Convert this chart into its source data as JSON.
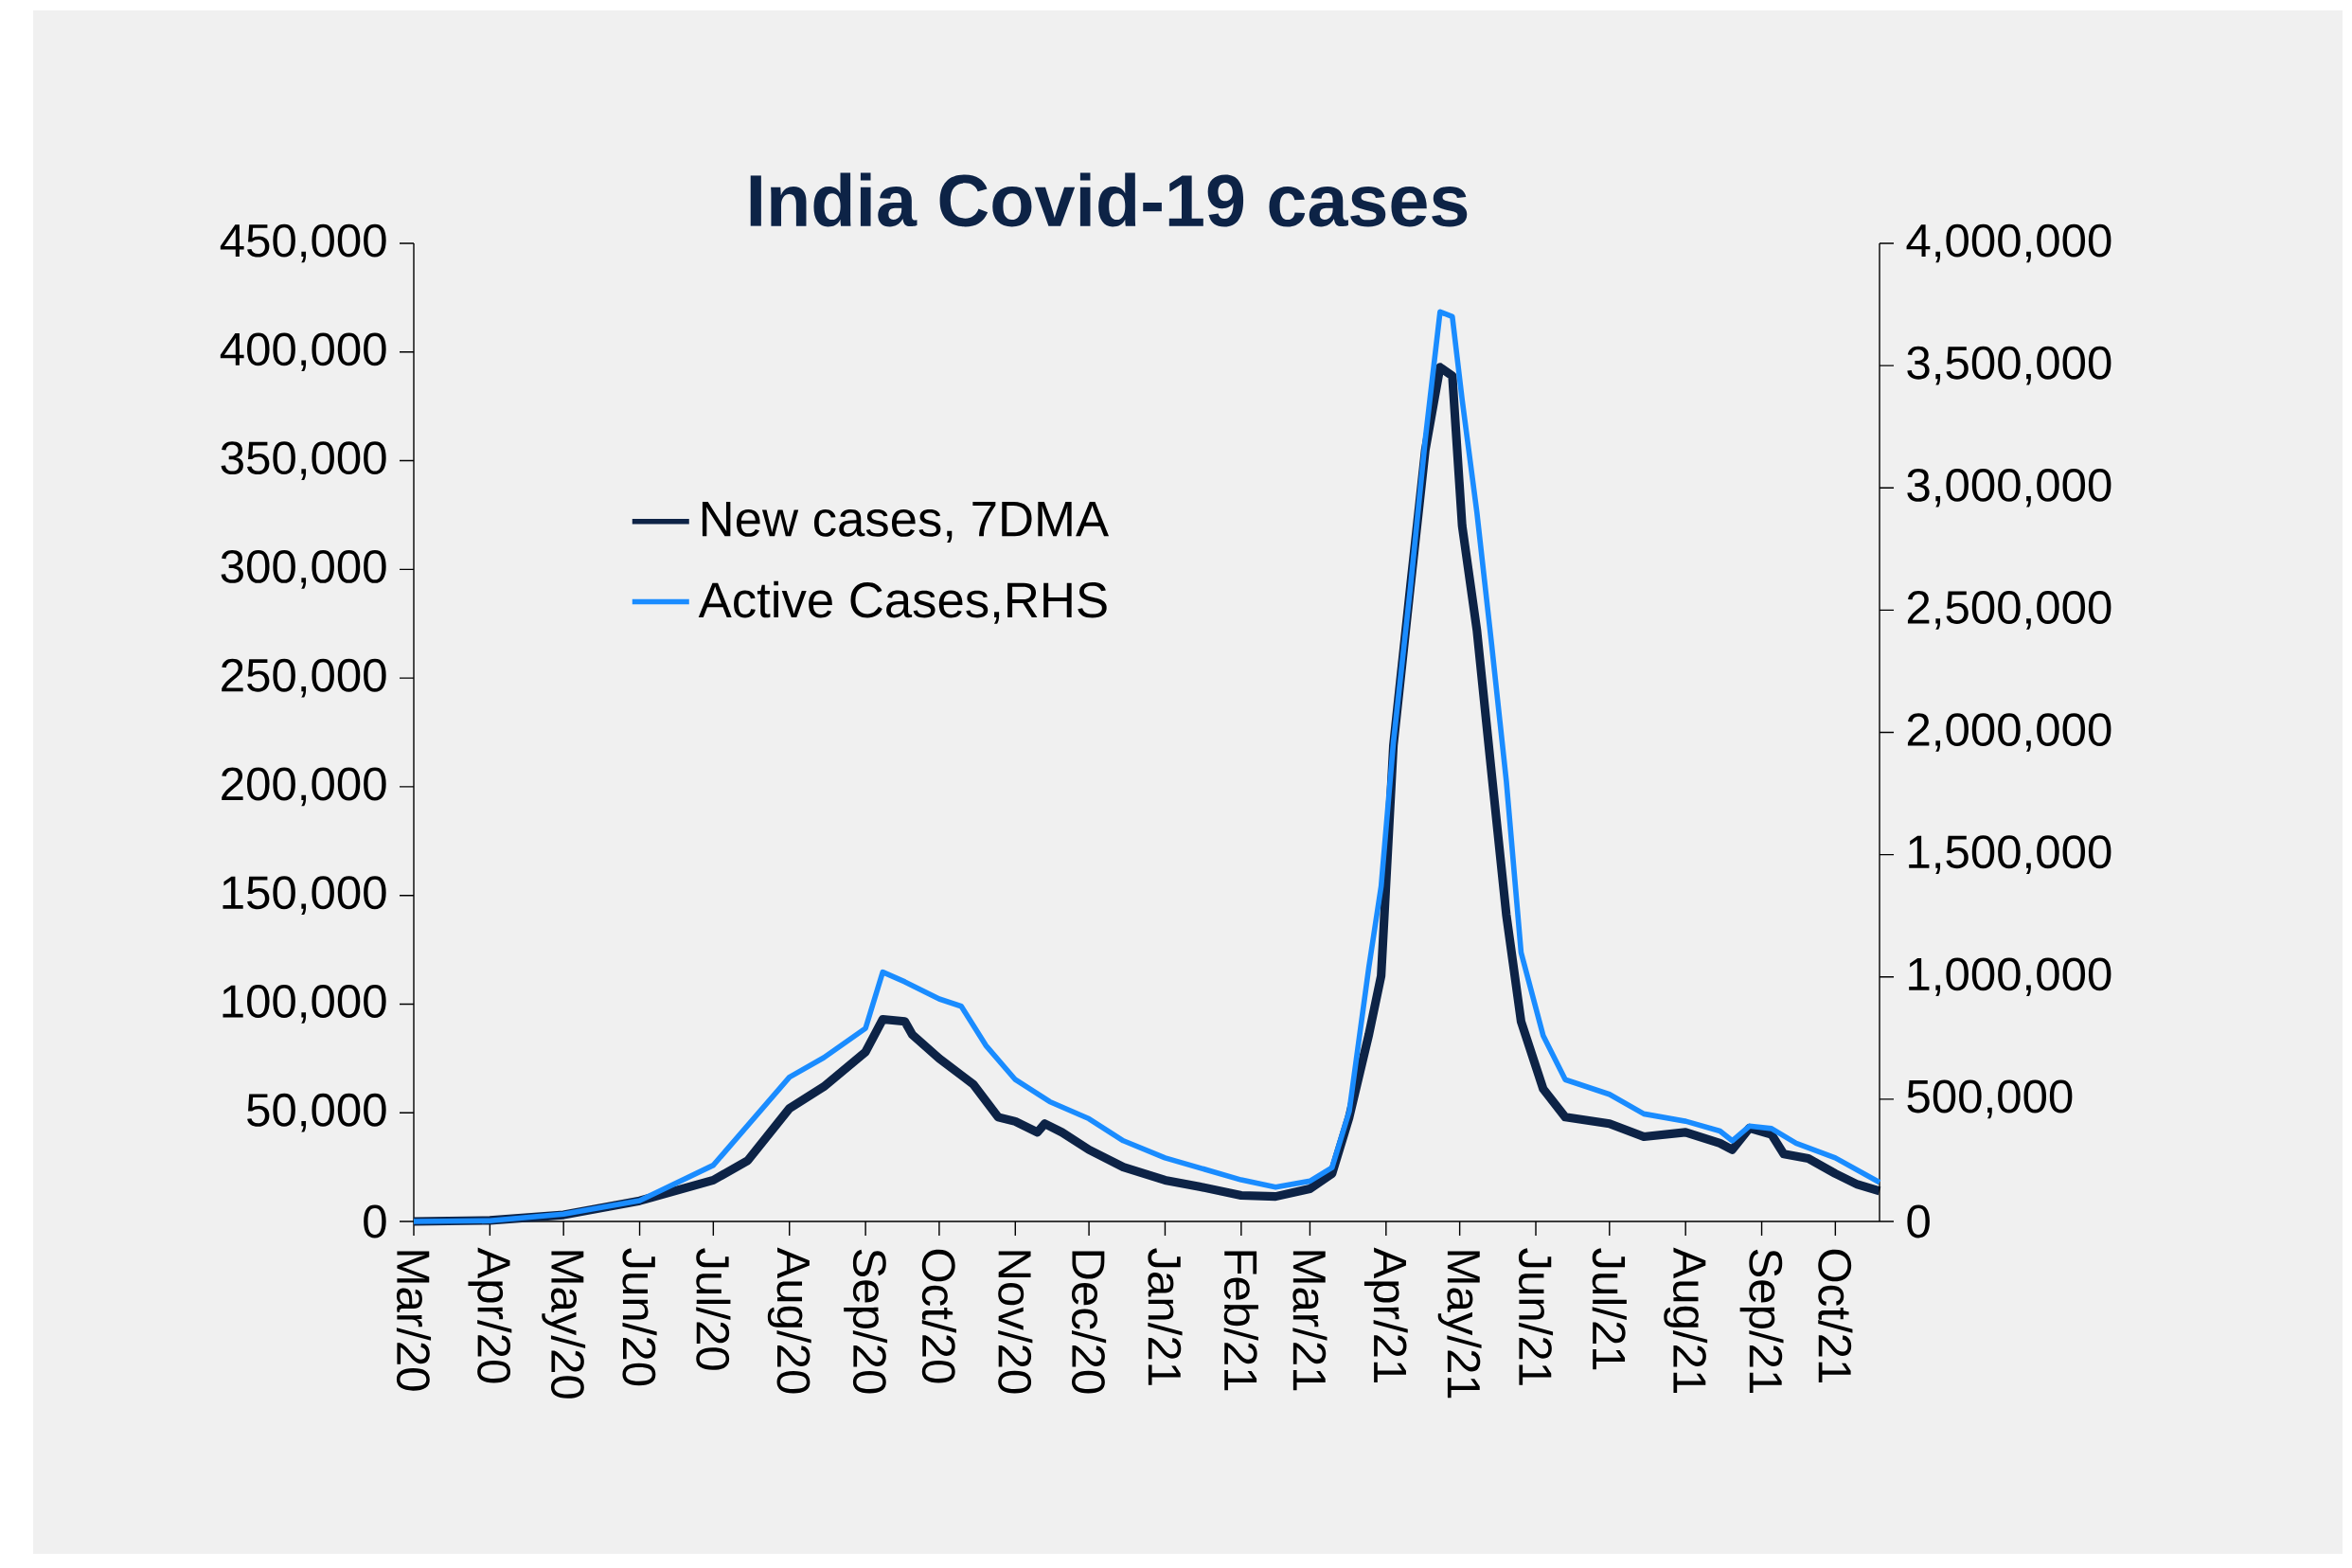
{
  "chart_data": {
    "type": "line",
    "title": "India Covid-19 cases",
    "xlim": [
      "2020-03-01",
      "2021-10-19"
    ],
    "xticks": [
      {
        "value": "2020-03-01",
        "label": "Mar/20"
      },
      {
        "value": "2020-04-01",
        "label": "Apr/20"
      },
      {
        "value": "2020-05-01",
        "label": "May/20"
      },
      {
        "value": "2020-06-01",
        "label": "Jun/20"
      },
      {
        "value": "2020-07-01",
        "label": "Jul/20"
      },
      {
        "value": "2020-08-01",
        "label": "Aug/20"
      },
      {
        "value": "2020-09-01",
        "label": "Sep/20"
      },
      {
        "value": "2020-10-01",
        "label": "Oct/20"
      },
      {
        "value": "2020-11-01",
        "label": "Nov/20"
      },
      {
        "value": "2020-12-01",
        "label": "Dec/20"
      },
      {
        "value": "2021-01-01",
        "label": "Jan/21"
      },
      {
        "value": "2021-02-01",
        "label": "Feb/21"
      },
      {
        "value": "2021-03-01",
        "label": "Mar/21"
      },
      {
        "value": "2021-04-01",
        "label": "Apr/21"
      },
      {
        "value": "2021-05-01",
        "label": "May/21"
      },
      {
        "value": "2021-06-01",
        "label": "Jun/21"
      },
      {
        "value": "2021-07-01",
        "label": "Jul/21"
      },
      {
        "value": "2021-08-01",
        "label": "Aug/21"
      },
      {
        "value": "2021-09-01",
        "label": "Sep/21"
      },
      {
        "value": "2021-10-01",
        "label": "Oct/21"
      }
    ],
    "ylim": [
      0,
      450000
    ],
    "yticks": [
      0,
      {
        "value": 50000,
        "label": "50,000"
      },
      {
        "value": 100000,
        "label": "100,000"
      },
      {
        "value": 150000,
        "label": "150,000"
      },
      {
        "value": 200000,
        "label": "200,000"
      },
      {
        "value": 250000,
        "label": "250,000"
      },
      {
        "value": 300000,
        "label": "300,000"
      },
      {
        "value": 350000,
        "label": "350,000"
      },
      {
        "value": 400000,
        "label": "400,000"
      },
      {
        "value": 450000,
        "label": "450,000"
      }
    ],
    "y2lim": [
      0,
      4000000
    ],
    "y2ticks": [
      0,
      {
        "value": 500000,
        "label": "500,000"
      },
      {
        "value": 1000000,
        "label": "1,000,000"
      },
      {
        "value": 1500000,
        "label": "1,500,000"
      },
      {
        "value": 2000000,
        "label": "2,000,000"
      },
      {
        "value": 2500000,
        "label": "2,500,000"
      },
      {
        "value": 3000000,
        "label": "3,000,000"
      },
      {
        "value": 3500000,
        "label": "3,500,000"
      },
      {
        "value": 4000000,
        "label": "4,000,000"
      }
    ],
    "legend": "top left",
    "series": [
      {
        "name": "New cases, 7DMA",
        "color": "#0d2346",
        "x": [
          "2020-03-01",
          "2020-04-01",
          "2020-05-01",
          "2020-06-01",
          "2020-07-01",
          "2020-07-15",
          "2020-08-01",
          "2020-08-15",
          "2020-09-01",
          "2020-09-08",
          "2020-09-17",
          "2020-09-20",
          "2020-10-01",
          "2020-10-15",
          "2020-10-25",
          "2020-11-01",
          "2020-11-10",
          "2020-11-13",
          "2020-11-20",
          "2020-12-01",
          "2020-12-15",
          "2021-01-01",
          "2021-01-15",
          "2021-02-01",
          "2021-02-15",
          "2021-03-01",
          "2021-03-10",
          "2021-03-17",
          "2021-03-25",
          "2021-03-30",
          "2021-04-04",
          "2021-04-11",
          "2021-04-17",
          "2021-04-23",
          "2021-04-28",
          "2021-05-02",
          "2021-05-08",
          "2021-05-14",
          "2021-05-20",
          "2021-05-26",
          "2021-06-04",
          "2021-06-13",
          "2021-07-01",
          "2021-07-15",
          "2021-08-01",
          "2021-08-15",
          "2021-08-20",
          "2021-08-27",
          "2021-09-05",
          "2021-09-10",
          "2021-09-20",
          "2021-10-01",
          "2021-10-10",
          "2021-10-19"
        ],
        "values": [
          0,
          500,
          3000,
          9500,
          19000,
          28000,
          52000,
          62000,
          78000,
          93000,
          92000,
          86000,
          75000,
          63000,
          48000,
          46000,
          41000,
          45000,
          41000,
          33000,
          25000,
          19000,
          16000,
          12000,
          11500,
          15000,
          22000,
          48000,
          86000,
          113000,
          219000,
          293000,
          355000,
          393000,
          389000,
          320000,
          272000,
          206000,
          141000,
          92000,
          61000,
          48000,
          45000,
          39000,
          41000,
          36000,
          33000,
          43000,
          40000,
          31000,
          29000,
          22000,
          17000,
          14000
        ]
      },
      {
        "name": "Active Cases,RHS",
        "color": "#1a8cff",
        "axis": "y2",
        "x": [
          "2020-03-01",
          "2020-04-01",
          "2020-05-01",
          "2020-06-01",
          "2020-07-01",
          "2020-08-01",
          "2020-08-15",
          "2020-09-01",
          "2020-09-08",
          "2020-09-17",
          "2020-10-01",
          "2020-10-10",
          "2020-10-20",
          "2020-11-01",
          "2020-11-15",
          "2020-12-01",
          "2020-12-15",
          "2021-01-01",
          "2021-02-01",
          "2021-02-15",
          "2021-03-01",
          "2021-03-10",
          "2021-03-17",
          "2021-03-25",
          "2021-03-30",
          "2021-04-04",
          "2021-04-11",
          "2021-04-17",
          "2021-04-23",
          "2021-04-28",
          "2021-05-02",
          "2021-05-08",
          "2021-05-14",
          "2021-05-20",
          "2021-05-26",
          "2021-06-04",
          "2021-06-13",
          "2021-07-01",
          "2021-07-15",
          "2021-08-01",
          "2021-08-15",
          "2021-08-20",
          "2021-08-27",
          "2021-09-05",
          "2021-09-15",
          "2021-10-01",
          "2021-10-19"
        ],
        "values": [
          0,
          3000,
          30000,
          85000,
          230000,
          590000,
          670000,
          790000,
          1020000,
          980000,
          910000,
          880000,
          720000,
          580000,
          490000,
          420000,
          330000,
          260000,
          170000,
          140000,
          165000,
          220000,
          450000,
          1040000,
          1370000,
          1960000,
          2600000,
          3200000,
          3720000,
          3700000,
          3360000,
          2900000,
          2360000,
          1800000,
          1100000,
          760000,
          580000,
          520000,
          440000,
          410000,
          370000,
          330000,
          390000,
          380000,
          320000,
          260000,
          160000
        ]
      }
    ]
  }
}
